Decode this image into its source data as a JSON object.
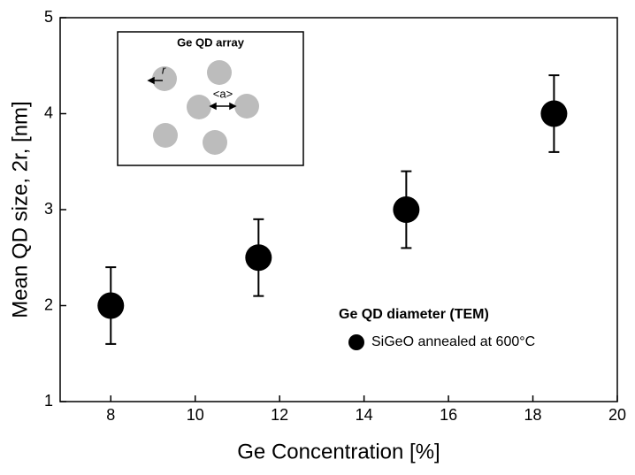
{
  "chart_data": {
    "type": "scatter",
    "x_label": "Ge Concentration [%]",
    "y_label": "Mean QD size, 2r,  [nm]",
    "xlim": [
      6.8,
      20
    ],
    "xticks": [
      8,
      10,
      12,
      14,
      16,
      18,
      20
    ],
    "ylim": [
      1,
      5
    ],
    "yticks": [
      1,
      2,
      3,
      4,
      5
    ],
    "legend_title": "Ge QD diameter (TEM)",
    "series": [
      {
        "name": "SiGeO annealed at 600°C",
        "color": "#000000",
        "x": [
          8,
          11.5,
          15,
          18.5
        ],
        "values": [
          2,
          2.5,
          3,
          4
        ],
        "errors": [
          0.4,
          0.4,
          0.4,
          0.4
        ]
      }
    ],
    "inset": {
      "title": "Ge QD array",
      "title_color": "#e8141b",
      "labels": [
        "r",
        "<a>"
      ]
    }
  }
}
